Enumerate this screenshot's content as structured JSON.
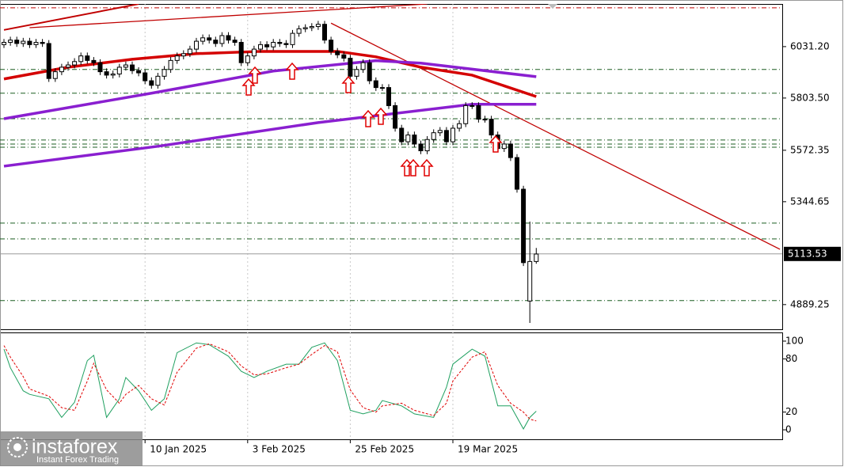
{
  "chart_data": [
    {
      "type": "candlestick",
      "categories": [
        null,
        null,
        null,
        null,
        null,
        null,
        null,
        null,
        null,
        null,
        null,
        null,
        null,
        null,
        null,
        null,
        null,
        null,
        null,
        null,
        null,
        null,
        "10 Jan 2025",
        null,
        null,
        null,
        null,
        null,
        null,
        null,
        null,
        null,
        null,
        null,
        null,
        null,
        null,
        null,
        "3 Feb 2025",
        null,
        null,
        null,
        null,
        null,
        null,
        null,
        null,
        null,
        null,
        null,
        null,
        null,
        null,
        null,
        "25 Feb 2025",
        null,
        null,
        null,
        null,
        null,
        null,
        null,
        null,
        null,
        null,
        null,
        null,
        null,
        null,
        null,
        "19 Mar 2025",
        null,
        null,
        null,
        null,
        null,
        null,
        null,
        null,
        null,
        null,
        null,
        null,
        null
      ],
      "open": [
        6040,
        6050,
        6060,
        6045,
        6055,
        6040,
        6050,
        6045,
        5890,
        5920,
        5940,
        5950,
        5965,
        5990,
        5970,
        5960,
        5920,
        5905,
        5910,
        5940,
        5950,
        5925,
        5915,
        5880,
        5860,
        5900,
        5930,
        5970,
        5990,
        6000,
        6020,
        6055,
        6070,
        6060,
        6045,
        6080,
        6060,
        6050,
        5960,
        5990,
        6020,
        6040,
        6030,
        6050,
        6045,
        6040,
        6090,
        6110,
        6115,
        6120,
        6130,
        6060,
        6010,
        5995,
        5980,
        5900,
        5930,
        5960,
        5880,
        5850,
        5850,
        5770,
        5670,
        5610,
        5640,
        5600,
        5570,
        5620,
        5650,
        5660,
        5610,
        5670,
        5690,
        5770,
        5770,
        5710,
        5710,
        5640,
        5580,
        5600,
        5540,
        5400,
        4905,
        5080
      ],
      "high": [
        6065,
        6075,
        6075,
        6070,
        6070,
        6065,
        6065,
        6060,
        5935,
        5955,
        5965,
        5980,
        6005,
        6005,
        5985,
        5975,
        5935,
        5925,
        5955,
        5965,
        5965,
        5940,
        5930,
        5895,
        5915,
        5945,
        5985,
        6005,
        6015,
        6035,
        6070,
        6085,
        6085,
        6075,
        6095,
        6095,
        6075,
        6065,
        6005,
        6035,
        6055,
        6055,
        6065,
        6065,
        6060,
        6105,
        6125,
        6130,
        6135,
        6145,
        6145,
        6075,
        6025,
        6010,
        5995,
        5945,
        5975,
        5975,
        5895,
        5865,
        5865,
        5785,
        5685,
        5655,
        5655,
        5615,
        5635,
        5665,
        5675,
        5675,
        5685,
        5705,
        5785,
        5785,
        5785,
        5725,
        5725,
        5655,
        5615,
        5615,
        5555,
        5415,
        5257,
        5140
      ],
      "low": [
        6025,
        6035,
        6030,
        6030,
        6025,
        6025,
        6030,
        5875,
        5875,
        5905,
        5925,
        5935,
        5950,
        5955,
        5945,
        5905,
        5890,
        5890,
        5895,
        5925,
        5910,
        5900,
        5865,
        5845,
        5845,
        5885,
        5915,
        5955,
        5975,
        5985,
        6005,
        6040,
        6045,
        6030,
        6030,
        6045,
        6035,
        5945,
        5945,
        5975,
        6005,
        6015,
        6015,
        6030,
        6025,
        6025,
        6075,
        6095,
        6100,
        6105,
        6045,
        5995,
        5980,
        5965,
        5885,
        5885,
        5915,
        5865,
        5835,
        5835,
        5755,
        5655,
        5595,
        5595,
        5585,
        5555,
        5555,
        5605,
        5635,
        5595,
        5595,
        5655,
        5675,
        5755,
        5695,
        5695,
        5625,
        5565,
        5565,
        5525,
        5385,
        5060,
        4808,
        5070
      ],
      "close": [
        6050,
        6060,
        6045,
        6055,
        6040,
        6050,
        6045,
        5890,
        5920,
        5940,
        5950,
        5965,
        5990,
        5970,
        5960,
        5920,
        5905,
        5910,
        5940,
        5950,
        5925,
        5915,
        5880,
        5860,
        5900,
        5930,
        5970,
        5990,
        6000,
        6020,
        6055,
        6070,
        6060,
        6045,
        6080,
        6060,
        6050,
        5960,
        5990,
        6020,
        6040,
        6030,
        6050,
        6045,
        6040,
        6090,
        6110,
        6115,
        6120,
        6130,
        6060,
        6010,
        5995,
        5980,
        5900,
        5930,
        5960,
        5880,
        5850,
        5850,
        5770,
        5670,
        5610,
        5640,
        5600,
        5570,
        5620,
        5650,
        5660,
        5610,
        5670,
        5690,
        5770,
        5770,
        5710,
        5710,
        5640,
        5580,
        5600,
        5540,
        5400,
        5075,
        5080,
        5113
      ],
      "ylim": [
        4780,
        6220
      ],
      "yticks": [
        {
          "value": 6031.2,
          "label": "6031.20"
        },
        {
          "value": 5803.5,
          "label": "5803.50"
        },
        5572.35,
        5344.65,
        4889.25
      ],
      "current_price": 5113.53,
      "grid": true,
      "moving_averages": [
        {
          "color": "#d40000",
          "x": [
            0,
            10,
            20,
            30,
            40,
            52,
            58,
            65,
            73,
            83
          ],
          "values": [
            5888,
            5940,
            5975,
            6000,
            6010,
            6010,
            5986,
            5940,
            5905,
            5810
          ]
        },
        {
          "color": "#8a1fd0",
          "x": [
            0,
            23,
            42,
            58,
            65,
            83
          ],
          "values": [
            5712,
            5825,
            5923,
            5969,
            5958,
            5898
          ]
        },
        {
          "color": "#8a1fd0",
          "x": [
            0,
            24,
            49,
            73,
            83
          ],
          "values": [
            5502,
            5590,
            5695,
            5776,
            5776
          ]
        }
      ],
      "trendlines": [
        {
          "color": "#c00000",
          "x": [
            0,
            21
          ],
          "values": [
            6105,
            6220
          ]
        },
        {
          "color": "#c00000",
          "x": [
            4,
            66
          ],
          "values": [
            6115,
            6220
          ]
        },
        {
          "color": "#c00000",
          "x": [
            51,
            121
          ],
          "values": [
            6135,
            5134
          ]
        }
      ],
      "levels": [
        {
          "value": 6203,
          "color": "#c00000"
        },
        {
          "value": 5930,
          "color": "#1b5e20"
        },
        {
          "value": 5825,
          "color": "#1b5e20"
        },
        {
          "value": 5712,
          "color": "#1b5e20"
        },
        {
          "value": 5618,
          "color": "#1b5e20"
        },
        {
          "value": 5600,
          "color": "#1b5e20"
        },
        {
          "value": 5586,
          "color": "#1b5e20"
        },
        {
          "value": 5250,
          "color": "#1b5e20"
        },
        {
          "value": 5180,
          "color": "#1b5e20"
        },
        {
          "value": 4907,
          "color": "#1b5e20"
        }
      ]
    },
    {
      "type": "line",
      "ylim": [
        -8,
        108
      ],
      "yticks": [
        0,
        20,
        80,
        100
      ],
      "series": [
        {
          "color": "#1fa060",
          "dashed": false,
          "x": [
            0,
            1,
            3,
            4,
            7,
            9,
            11,
            13,
            14,
            16,
            18,
            19,
            21,
            23,
            25,
            27,
            30,
            32,
            35,
            37,
            39,
            41,
            44,
            46,
            48,
            50,
            52,
            54,
            56,
            58,
            59,
            62,
            64,
            67,
            69,
            70,
            73,
            75,
            77,
            79,
            81,
            82,
            83
          ],
          "values": [
            91,
            70,
            44,
            40,
            35,
            14,
            31,
            78,
            84,
            14,
            35,
            59,
            44,
            22,
            35,
            87,
            98,
            96,
            83,
            66,
            59,
            66,
            74,
            74,
            93,
            98,
            78,
            22,
            18,
            22,
            33,
            27,
            18,
            14,
            48,
            74,
            91,
            83,
            27,
            27,
            1,
            14,
            21
          ]
        },
        {
          "color": "#e00000",
          "dashed": true,
          "x": [
            0,
            1,
            3,
            4,
            7,
            9,
            11,
            13,
            14,
            16,
            18,
            19,
            21,
            23,
            25,
            27,
            30,
            32,
            35,
            37,
            39,
            41,
            44,
            46,
            48,
            50,
            52,
            54,
            56,
            58,
            59,
            62,
            64,
            67,
            69,
            70,
            73,
            75,
            77,
            79,
            81,
            82,
            83
          ],
          "values": [
            95,
            82,
            60,
            46,
            38,
            25,
            22,
            55,
            75,
            45,
            30,
            40,
            50,
            35,
            28,
            65,
            92,
            97,
            88,
            72,
            62,
            63,
            70,
            74,
            85,
            95,
            88,
            45,
            25,
            20,
            27,
            30,
            22,
            16,
            30,
            55,
            82,
            88,
            50,
            30,
            20,
            12,
            10
          ]
        }
      ]
    }
  ],
  "watermark": {
    "brand": "instaforex",
    "tagline": "Instant Forex Trading"
  }
}
